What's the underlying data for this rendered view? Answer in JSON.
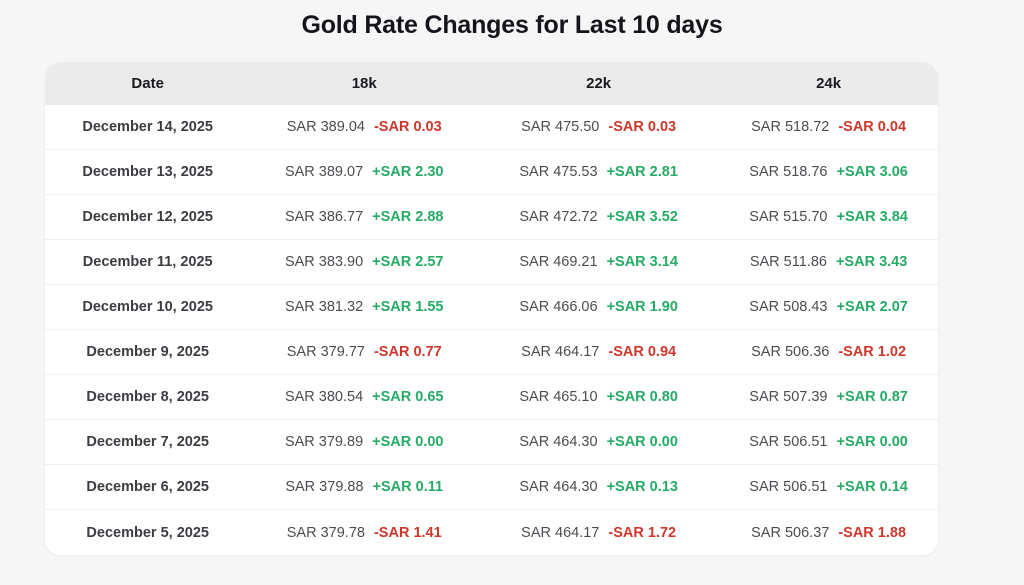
{
  "page": {
    "title": "Gold Rate Changes for Last 10 days"
  },
  "colors": {
    "positive": "#26ab66",
    "negative": "#cd382d"
  },
  "table": {
    "columns": [
      "Date",
      "18k",
      "22k",
      "24k"
    ],
    "rows": [
      {
        "date": "December 14, 2025",
        "k18": {
          "price": "SAR 389.04",
          "change": "-SAR 0.03"
        },
        "k22": {
          "price": "SAR 475.50",
          "change": "-SAR 0.03"
        },
        "k24": {
          "price": "SAR 518.72",
          "change": "-SAR 0.04"
        }
      },
      {
        "date": "December 13, 2025",
        "k18": {
          "price": "SAR 389.07",
          "change": "+SAR 2.30"
        },
        "k22": {
          "price": "SAR 475.53",
          "change": "+SAR 2.81"
        },
        "k24": {
          "price": "SAR 518.76",
          "change": "+SAR 3.06"
        }
      },
      {
        "date": "December 12, 2025",
        "k18": {
          "price": "SAR 386.77",
          "change": "+SAR 2.88"
        },
        "k22": {
          "price": "SAR 472.72",
          "change": "+SAR 3.52"
        },
        "k24": {
          "price": "SAR 515.70",
          "change": "+SAR 3.84"
        }
      },
      {
        "date": "December 11, 2025",
        "k18": {
          "price": "SAR 383.90",
          "change": "+SAR 2.57"
        },
        "k22": {
          "price": "SAR 469.21",
          "change": "+SAR 3.14"
        },
        "k24": {
          "price": "SAR 511.86",
          "change": "+SAR 3.43"
        }
      },
      {
        "date": "December 10, 2025",
        "k18": {
          "price": "SAR 381.32",
          "change": "+SAR 1.55"
        },
        "k22": {
          "price": "SAR 466.06",
          "change": "+SAR 1.90"
        },
        "k24": {
          "price": "SAR 508.43",
          "change": "+SAR 2.07"
        }
      },
      {
        "date": "December 9, 2025",
        "k18": {
          "price": "SAR 379.77",
          "change": "-SAR 0.77"
        },
        "k22": {
          "price": "SAR 464.17",
          "change": "-SAR 0.94"
        },
        "k24": {
          "price": "SAR 506.36",
          "change": "-SAR 1.02"
        }
      },
      {
        "date": "December 8, 2025",
        "k18": {
          "price": "SAR 380.54",
          "change": "+SAR 0.65"
        },
        "k22": {
          "price": "SAR 465.10",
          "change": "+SAR 0.80"
        },
        "k24": {
          "price": "SAR 507.39",
          "change": "+SAR 0.87"
        }
      },
      {
        "date": "December 7, 2025",
        "k18": {
          "price": "SAR 379.89",
          "change": "+SAR 0.00"
        },
        "k22": {
          "price": "SAR 464.30",
          "change": "+SAR 0.00"
        },
        "k24": {
          "price": "SAR 506.51",
          "change": "+SAR 0.00"
        }
      },
      {
        "date": "December 6, 2025",
        "k18": {
          "price": "SAR 379.88",
          "change": "+SAR 0.11"
        },
        "k22": {
          "price": "SAR 464.30",
          "change": "+SAR 0.13"
        },
        "k24": {
          "price": "SAR 506.51",
          "change": "+SAR 0.14"
        }
      },
      {
        "date": "December 5, 2025",
        "k18": {
          "price": "SAR 379.78",
          "change": "-SAR 1.41"
        },
        "k22": {
          "price": "SAR 464.17",
          "change": "-SAR 1.72"
        },
        "k24": {
          "price": "SAR 506.37",
          "change": "-SAR 1.88"
        }
      }
    ]
  }
}
